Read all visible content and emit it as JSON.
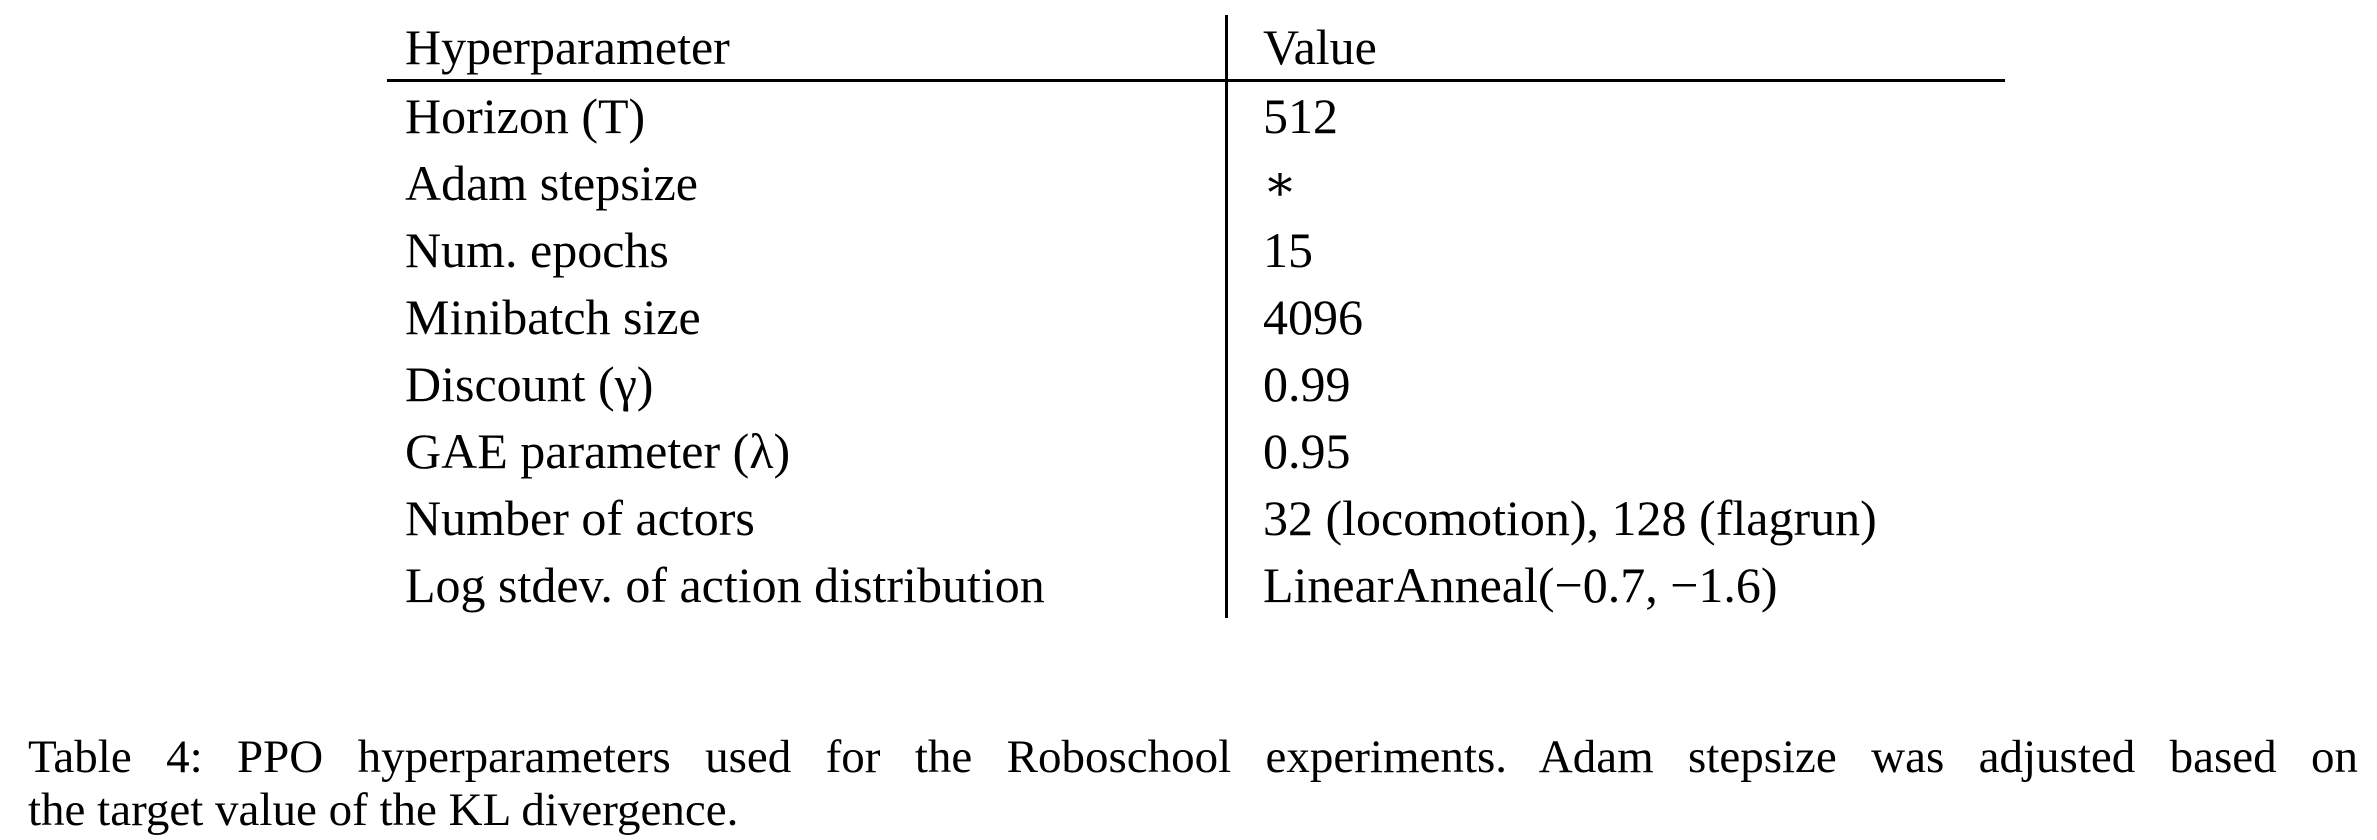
{
  "page": {
    "background_color": "#ffffff",
    "text_color": "#000000"
  },
  "table": {
    "header": {
      "param": "Hyperparameter",
      "value": "Value"
    },
    "rows": [
      {
        "param": "Horizon (T)",
        "value": "512"
      },
      {
        "param": "Adam stepsize",
        "value": "∗"
      },
      {
        "param": "Num. epochs",
        "value": "15"
      },
      {
        "param": "Minibatch size",
        "value": "4096"
      },
      {
        "param": "Discount (γ)",
        "value": "0.99"
      },
      {
        "param": "GAE parameter (λ)",
        "value": "0.95"
      },
      {
        "param": "Number of actors",
        "value": "32 (locomotion), 128 (flagrun)"
      },
      {
        "param": "Log stdev. of action distribution",
        "value": "LinearAnneal(−0.7, −1.6)"
      }
    ]
  },
  "caption": {
    "line1": "Table 4: PPO hyperparameters used for the Roboschool experiments. Adam stepsize was adjusted based on",
    "line2": "the target value of the KL divergence."
  }
}
